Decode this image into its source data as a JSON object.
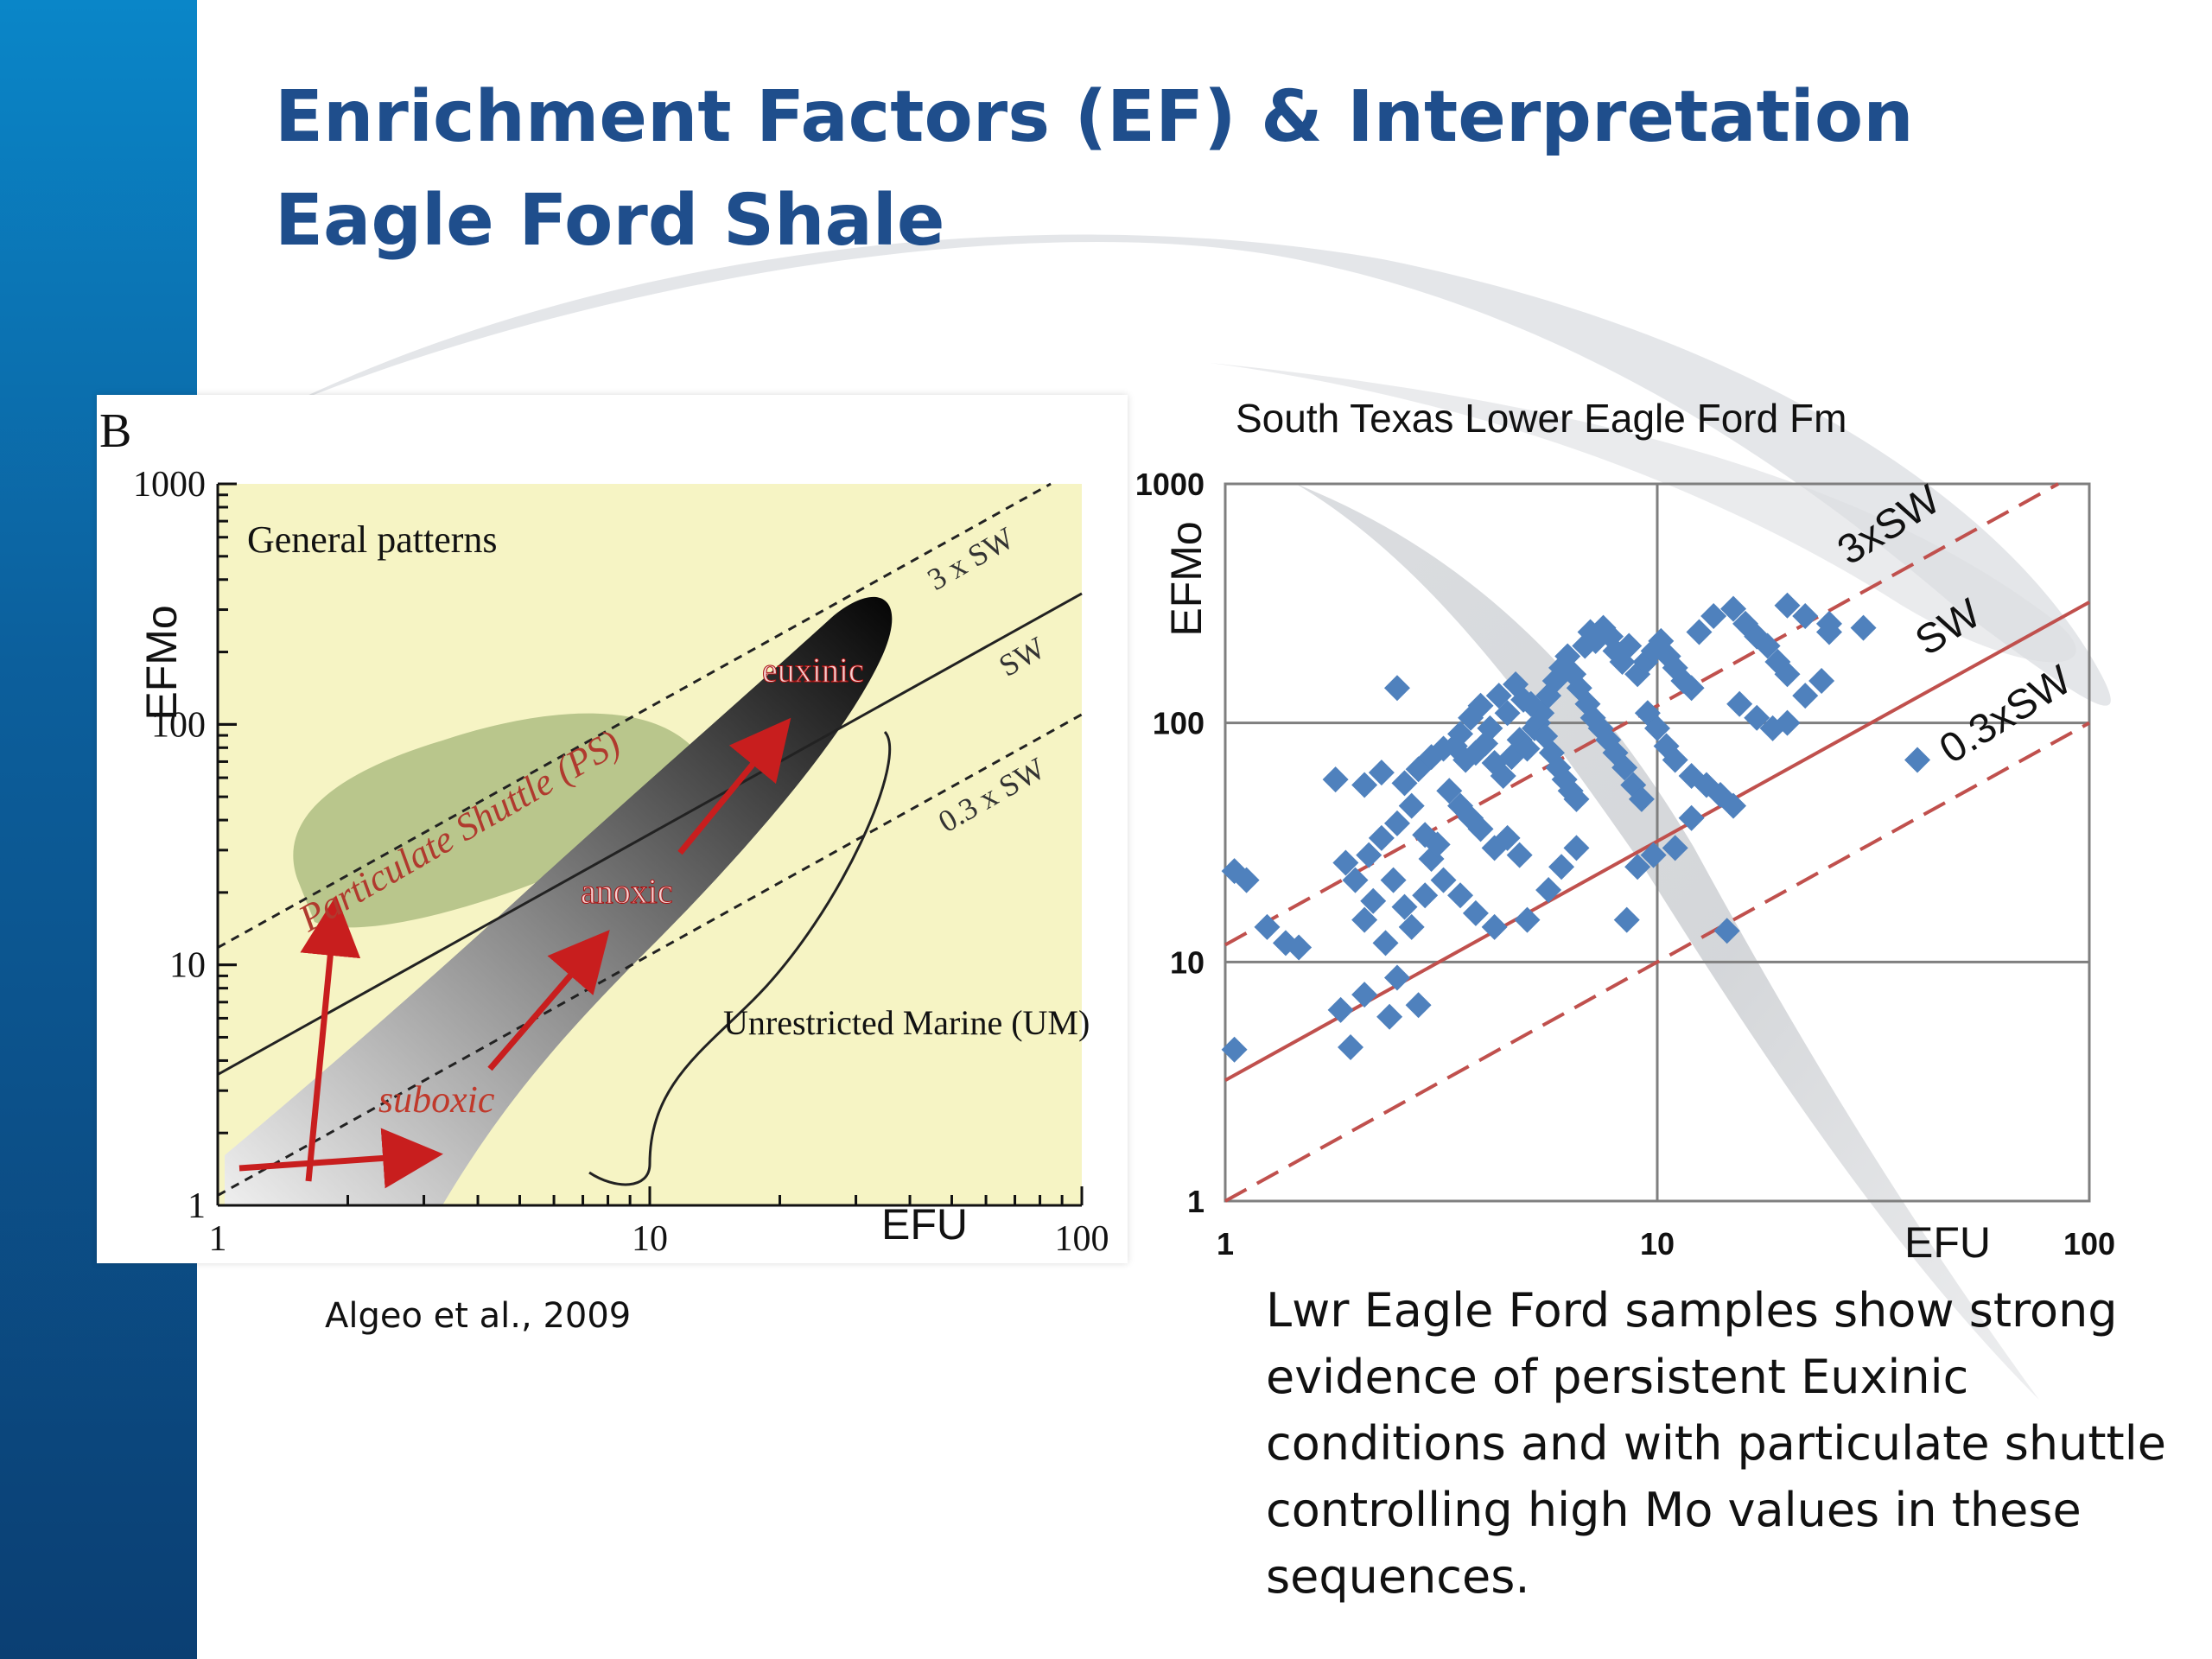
{
  "slide": {
    "title_line1": "Enrichment Factors (EF) & Interpretation",
    "title_line2": "Eagle Ford Shale",
    "citation": "Algeo et al., 2009",
    "note": "Lwr Eagle Ford samples show strong evidence of persistent Euxinic conditions and with particulate shuttle controlling high Mo values in these sequences."
  },
  "colors": {
    "title": "#1f4e8c",
    "points": "#4f81bd",
    "red_lines": "#c0504d",
    "arrows": "#c81e1e",
    "panel_bg": "#f6f4c4"
  },
  "chart_data": [
    {
      "type": "diagram",
      "panel_label": "B",
      "subtitle": "General patterns",
      "xlabel": "EFU",
      "ylabel": "EFMo",
      "xscale": "log",
      "yscale": "log",
      "xlim": [
        1,
        100
      ],
      "ylim": [
        1,
        1000
      ],
      "x_ticks": [
        "1",
        "10",
        "100"
      ],
      "y_ticks": [
        "1",
        "10",
        "100",
        "1000"
      ],
      "lines": [
        {
          "label": "3 x SW",
          "ratio": 11.8,
          "style": "dashed"
        },
        {
          "label": "SW",
          "ratio": 3.5,
          "style": "solid"
        },
        {
          "label": "0.3 x SW",
          "ratio": 1.1,
          "style": "dashed"
        }
      ],
      "regions": [
        {
          "label": "Particulate Shuttle (PS)"
        },
        {
          "label": "Unrestricted Marine (UM)"
        }
      ],
      "stages": [
        "suboxic",
        "anoxic",
        "euxinic"
      ]
    },
    {
      "type": "scatter",
      "title": "South Texas Lower Eagle Ford Fm",
      "xlabel": "EFU",
      "ylabel": "EFMo",
      "xscale": "log",
      "yscale": "log",
      "xlim": [
        1,
        100
      ],
      "ylim": [
        1,
        1000
      ],
      "x_ticks": [
        "1",
        "10",
        "100"
      ],
      "y_ticks": [
        "1",
        "10",
        "100",
        "1000"
      ],
      "grid": true,
      "reference_lines": [
        {
          "label": "3xSW",
          "ratio": 11.8,
          "style": "dashed"
        },
        {
          "label": "SW",
          "ratio": 3.2,
          "style": "solid"
        },
        {
          "label": "0.3xSW",
          "ratio": 1.0,
          "style": "dashed"
        }
      ],
      "series": [
        {
          "points": [
            [
              1.05,
              24
            ],
            [
              1.12,
              22
            ],
            [
              1.25,
              14
            ],
            [
              1.38,
              12
            ],
            [
              1.48,
              11.5
            ],
            [
              1.05,
              4.3
            ],
            [
              1.85,
              6.3
            ],
            [
              1.95,
              4.4
            ],
            [
              2.1,
              7.3
            ],
            [
              2.4,
              5.9
            ],
            [
              2.8,
              6.6
            ],
            [
              2.5,
              8.6
            ],
            [
              2.1,
              15
            ],
            [
              2.2,
              18
            ],
            [
              2.35,
              12
            ],
            [
              2.45,
              22
            ],
            [
              2.6,
              17
            ],
            [
              2.7,
              14
            ],
            [
              2.9,
              19
            ],
            [
              3.0,
              27
            ],
            [
              1.9,
              26
            ],
            [
              2.0,
              22
            ],
            [
              2.15,
              28
            ],
            [
              2.3,
              33
            ],
            [
              2.5,
              38
            ],
            [
              2.7,
              45
            ],
            [
              2.9,
              34
            ],
            [
              3.1,
              31
            ],
            [
              1.8,
              58
            ],
            [
              2.1,
              55
            ],
            [
              2.3,
              62
            ],
            [
              2.6,
              56
            ],
            [
              2.8,
              64
            ],
            [
              3.0,
              72
            ],
            [
              3.2,
              78
            ],
            [
              3.4,
              80
            ],
            [
              2.5,
              140
            ],
            [
              3.3,
              52
            ],
            [
              3.5,
              45
            ],
            [
              3.7,
              40
            ],
            [
              3.9,
              36
            ],
            [
              4.2,
              30
            ],
            [
              4.5,
              33
            ],
            [
              4.8,
              28
            ],
            [
              3.2,
              22
            ],
            [
              3.5,
              19
            ],
            [
              3.8,
              16
            ],
            [
              4.2,
              14
            ],
            [
              5.0,
              15
            ],
            [
              5.6,
              20
            ],
            [
              6.0,
              25
            ],
            [
              6.5,
              30
            ],
            [
              3.5,
              90
            ],
            [
              3.7,
              105
            ],
            [
              3.9,
              118
            ],
            [
              4.1,
              95
            ],
            [
              4.3,
              130
            ],
            [
              4.5,
              110
            ],
            [
              4.7,
              145
            ],
            [
              4.9,
              125
            ],
            [
              3.6,
              70
            ],
            [
              3.8,
              75
            ],
            [
              4.0,
              82
            ],
            [
              4.2,
              68
            ],
            [
              4.4,
              60
            ],
            [
              4.6,
              72
            ],
            [
              4.8,
              85
            ],
            [
              5.0,
              78
            ],
            [
              5.2,
              95
            ],
            [
              5.4,
              110
            ],
            [
              5.6,
              130
            ],
            [
              5.8,
              150
            ],
            [
              6.0,
              170
            ],
            [
              6.2,
              190
            ],
            [
              6.4,
              160
            ],
            [
              6.6,
              140
            ],
            [
              5.1,
              120
            ],
            [
              5.3,
              100
            ],
            [
              5.5,
              88
            ],
            [
              5.7,
              75
            ],
            [
              5.9,
              65
            ],
            [
              6.1,
              58
            ],
            [
              6.3,
              52
            ],
            [
              6.5,
              48
            ],
            [
              6.8,
              210
            ],
            [
              7.0,
              240
            ],
            [
              7.2,
              220
            ],
            [
              7.5,
              250
            ],
            [
              7.8,
              230
            ],
            [
              8.0,
              200
            ],
            [
              8.3,
              180
            ],
            [
              8.6,
              210
            ],
            [
              6.9,
              120
            ],
            [
              7.1,
              105
            ],
            [
              7.4,
              95
            ],
            [
              7.7,
              85
            ],
            [
              8.0,
              75
            ],
            [
              8.4,
              65
            ],
            [
              8.8,
              55
            ],
            [
              9.2,
              48
            ],
            [
              9.0,
              160
            ],
            [
              9.4,
              180
            ],
            [
              9.8,
              200
            ],
            [
              10.2,
              220
            ],
            [
              10.6,
              190
            ],
            [
              11.0,
              170
            ],
            [
              11.5,
              150
            ],
            [
              12,
              140
            ],
            [
              9.5,
              110
            ],
            [
              10,
              95
            ],
            [
              10.5,
              80
            ],
            [
              11,
              70
            ],
            [
              12,
              60
            ],
            [
              13,
              55
            ],
            [
              14,
              50
            ],
            [
              15,
              45
            ],
            [
              12.5,
              240
            ],
            [
              13.5,
              280
            ],
            [
              15,
              300
            ],
            [
              16,
              260
            ],
            [
              17,
              230
            ],
            [
              18,
              210
            ],
            [
              19,
              180
            ],
            [
              20,
              160
            ],
            [
              15.5,
              120
            ],
            [
              17,
              105
            ],
            [
              18.5,
              95
            ],
            [
              20,
              100
            ],
            [
              22,
              130
            ],
            [
              24,
              150
            ],
            [
              25,
              240
            ],
            [
              30,
              250
            ],
            [
              20,
              310
            ],
            [
              22,
              280
            ],
            [
              25,
              260
            ],
            [
              12,
              40
            ],
            [
              11,
              30
            ],
            [
              9,
              25
            ],
            [
              8.5,
              15
            ],
            [
              14.5,
              13.5
            ],
            [
              40,
              70
            ],
            [
              9.8,
              28
            ]
          ]
        }
      ]
    }
  ]
}
